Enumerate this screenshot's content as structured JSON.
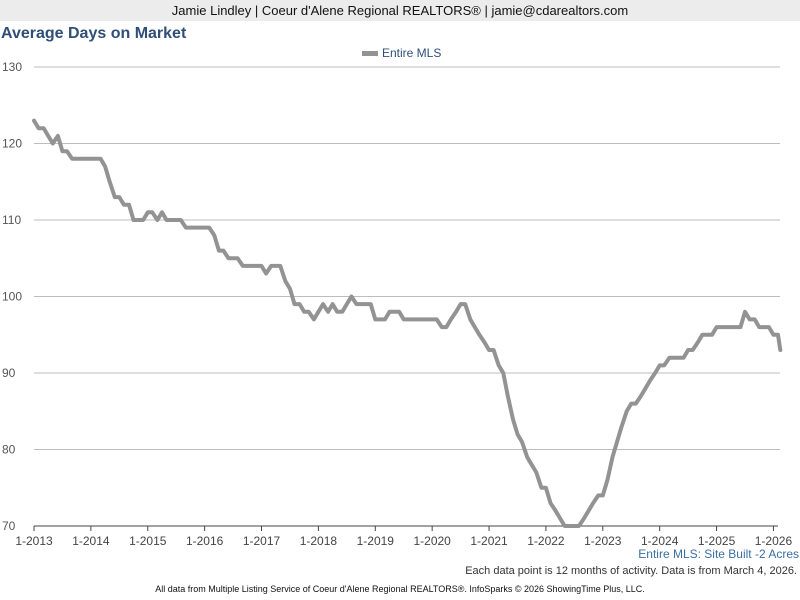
{
  "header": {
    "text": "Jamie Lindley | Coeur d'Alene Regional REALTORS® | jamie@cdarealtors.com"
  },
  "chart_data": {
    "type": "line",
    "title": "Average Days on Market",
    "xlabel": "",
    "ylabel": "",
    "ylim": [
      70,
      130
    ],
    "yticks": [
      70,
      80,
      90,
      100,
      110,
      120,
      130
    ],
    "xticks": [
      "1-2013",
      "1-2014",
      "1-2015",
      "1-2016",
      "1-2017",
      "1-2018",
      "1-2019",
      "1-2020",
      "1-2021",
      "1-2022",
      "1-2023",
      "1-2024",
      "1-2025",
      "1-2026"
    ],
    "xlim": [
      2013.0,
      2026.08
    ],
    "grid": true,
    "legend_position": "top-center",
    "series": [
      {
        "name": "Entire MLS",
        "color": "#939393",
        "points": [
          [
            2013.0,
            123
          ],
          [
            2013.08,
            122
          ],
          [
            2013.17,
            122
          ],
          [
            2013.25,
            121
          ],
          [
            2013.33,
            120
          ],
          [
            2013.42,
            121
          ],
          [
            2013.5,
            119
          ],
          [
            2013.58,
            119
          ],
          [
            2013.67,
            118
          ],
          [
            2013.75,
            118
          ],
          [
            2013.83,
            118
          ],
          [
            2013.92,
            118
          ],
          [
            2014.0,
            118
          ],
          [
            2014.08,
            118
          ],
          [
            2014.17,
            118
          ],
          [
            2014.25,
            117
          ],
          [
            2014.33,
            115
          ],
          [
            2014.42,
            113
          ],
          [
            2014.5,
            113
          ],
          [
            2014.58,
            112
          ],
          [
            2014.67,
            112
          ],
          [
            2014.75,
            110
          ],
          [
            2014.83,
            110
          ],
          [
            2014.92,
            110
          ],
          [
            2015.0,
            111
          ],
          [
            2015.08,
            111
          ],
          [
            2015.17,
            110
          ],
          [
            2015.25,
            111
          ],
          [
            2015.33,
            110
          ],
          [
            2015.42,
            110
          ],
          [
            2015.5,
            110
          ],
          [
            2015.58,
            110
          ],
          [
            2015.67,
            109
          ],
          [
            2015.75,
            109
          ],
          [
            2015.83,
            109
          ],
          [
            2015.92,
            109
          ],
          [
            2016.0,
            109
          ],
          [
            2016.08,
            109
          ],
          [
            2016.17,
            108
          ],
          [
            2016.25,
            106
          ],
          [
            2016.33,
            106
          ],
          [
            2016.42,
            105
          ],
          [
            2016.5,
            105
          ],
          [
            2016.58,
            105
          ],
          [
            2016.67,
            104
          ],
          [
            2016.75,
            104
          ],
          [
            2016.83,
            104
          ],
          [
            2016.92,
            104
          ],
          [
            2017.0,
            104
          ],
          [
            2017.08,
            103
          ],
          [
            2017.17,
            104
          ],
          [
            2017.25,
            104
          ],
          [
            2017.33,
            104
          ],
          [
            2017.42,
            102
          ],
          [
            2017.5,
            101
          ],
          [
            2017.58,
            99
          ],
          [
            2017.67,
            99
          ],
          [
            2017.75,
            98
          ],
          [
            2017.83,
            98
          ],
          [
            2017.92,
            97
          ],
          [
            2018.0,
            98
          ],
          [
            2018.08,
            99
          ],
          [
            2018.17,
            98
          ],
          [
            2018.25,
            99
          ],
          [
            2018.33,
            98
          ],
          [
            2018.42,
            98
          ],
          [
            2018.5,
            99
          ],
          [
            2018.58,
            100
          ],
          [
            2018.67,
            99
          ],
          [
            2018.75,
            99
          ],
          [
            2018.83,
            99
          ],
          [
            2018.92,
            99
          ],
          [
            2019.0,
            97
          ],
          [
            2019.08,
            97
          ],
          [
            2019.17,
            97
          ],
          [
            2019.25,
            98
          ],
          [
            2019.33,
            98
          ],
          [
            2019.42,
            98
          ],
          [
            2019.5,
            97
          ],
          [
            2019.58,
            97
          ],
          [
            2019.67,
            97
          ],
          [
            2019.75,
            97
          ],
          [
            2019.83,
            97
          ],
          [
            2019.92,
            97
          ],
          [
            2020.0,
            97
          ],
          [
            2020.08,
            97
          ],
          [
            2020.17,
            96
          ],
          [
            2020.25,
            96
          ],
          [
            2020.33,
            97
          ],
          [
            2020.42,
            98
          ],
          [
            2020.5,
            99
          ],
          [
            2020.58,
            99
          ],
          [
            2020.67,
            97
          ],
          [
            2020.75,
            96
          ],
          [
            2020.83,
            95
          ],
          [
            2020.92,
            94
          ],
          [
            2021.0,
            93
          ],
          [
            2021.08,
            93
          ],
          [
            2021.17,
            91
          ],
          [
            2021.25,
            90
          ],
          [
            2021.33,
            87
          ],
          [
            2021.42,
            84
          ],
          [
            2021.5,
            82
          ],
          [
            2021.58,
            81
          ],
          [
            2021.67,
            79
          ],
          [
            2021.75,
            78
          ],
          [
            2021.83,
            77
          ],
          [
            2021.92,
            75
          ],
          [
            2022.0,
            75
          ],
          [
            2022.08,
            73
          ],
          [
            2022.17,
            72
          ],
          [
            2022.25,
            71
          ],
          [
            2022.33,
            70
          ],
          [
            2022.42,
            70
          ],
          [
            2022.5,
            70
          ],
          [
            2022.58,
            70
          ],
          [
            2022.67,
            71
          ],
          [
            2022.75,
            72
          ],
          [
            2022.83,
            73
          ],
          [
            2022.92,
            74
          ],
          [
            2023.0,
            74
          ],
          [
            2023.08,
            76
          ],
          [
            2023.17,
            79
          ],
          [
            2023.25,
            81
          ],
          [
            2023.33,
            83
          ],
          [
            2023.42,
            85
          ],
          [
            2023.5,
            86
          ],
          [
            2023.58,
            86
          ],
          [
            2023.67,
            87
          ],
          [
            2023.75,
            88
          ],
          [
            2023.83,
            89
          ],
          [
            2023.92,
            90
          ],
          [
            2024.0,
            91
          ],
          [
            2024.08,
            91
          ],
          [
            2024.17,
            92
          ],
          [
            2024.25,
            92
          ],
          [
            2024.33,
            92
          ],
          [
            2024.42,
            92
          ],
          [
            2024.5,
            93
          ],
          [
            2024.58,
            93
          ],
          [
            2024.67,
            94
          ],
          [
            2024.75,
            95
          ],
          [
            2024.83,
            95
          ],
          [
            2024.92,
            95
          ],
          [
            2025.0,
            96
          ],
          [
            2025.08,
            96
          ],
          [
            2025.17,
            96
          ],
          [
            2025.25,
            96
          ],
          [
            2025.33,
            96
          ],
          [
            2025.42,
            96
          ],
          [
            2025.5,
            98
          ],
          [
            2025.58,
            97
          ],
          [
            2025.67,
            97
          ],
          [
            2025.75,
            96
          ],
          [
            2025.83,
            96
          ],
          [
            2025.92,
            96
          ],
          [
            2026.0,
            95
          ],
          [
            2026.08,
            95
          ],
          [
            2026.12,
            93
          ]
        ]
      }
    ]
  },
  "notes": {
    "series_caption": "Entire MLS: Site Built -2 Acres",
    "data_note": "Each data point is 12 months of activity. Data is from March 4, 2026."
  },
  "footer": {
    "text": "All data from Multiple Listing Service of Coeur d'Alene Regional REALTORS®. InfoSparks © 2026 ShowingTime Plus, LLC."
  }
}
